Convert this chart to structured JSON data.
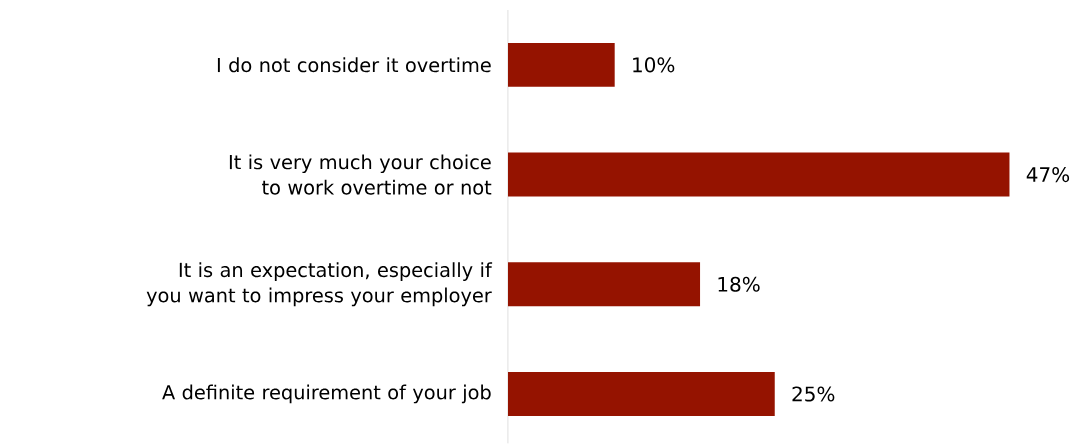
{
  "chart_data": {
    "type": "bar",
    "orientation": "horizontal",
    "categories": [
      "I do not consider it overtime",
      "It is very much your choice to work overtime or not",
      "It is an expectation, especially if you want to impress your employer",
      "A definite requirement of your job"
    ],
    "values": [
      10,
      47,
      18,
      25
    ],
    "value_labels": [
      "10%",
      "47%",
      "18%",
      "25%"
    ],
    "color": "#951300"
  }
}
